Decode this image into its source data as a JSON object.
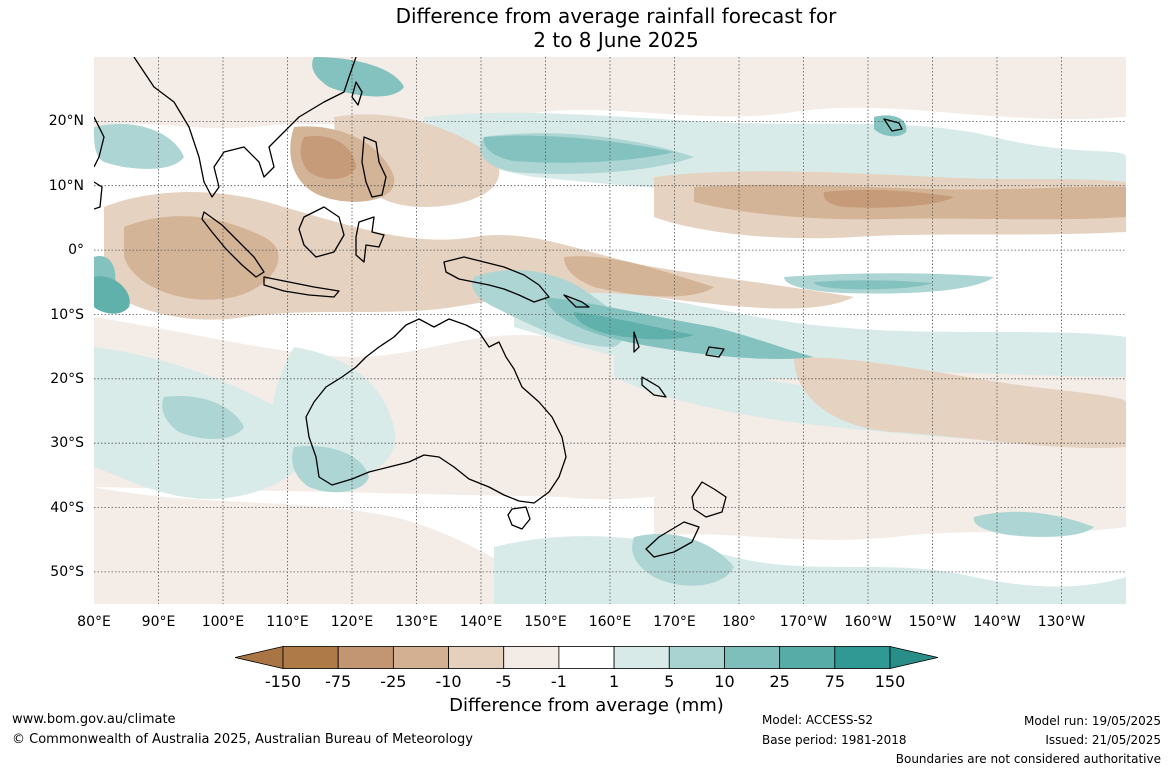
{
  "title": {
    "line1": "Difference from average rainfall forecast for",
    "line2": "2 to 8 June 2025"
  },
  "map": {
    "lat_labels": [
      "20°N",
      "10°N",
      "0°",
      "10°S",
      "20°S",
      "30°S",
      "40°S",
      "50°S"
    ],
    "lon_labels": [
      "80°E",
      "90°E",
      "100°E",
      "110°E",
      "120°E",
      "130°E",
      "140°E",
      "150°E",
      "160°E",
      "170°E",
      "180°",
      "170°W",
      "160°W",
      "150°W",
      "140°W",
      "130°W"
    ],
    "grid": "dotted",
    "extent": {
      "lon_min": 80,
      "lon_max": 240,
      "lat_min": -55,
      "lat_max": 30
    }
  },
  "legend": {
    "ticks": [
      "-150",
      "-75",
      "-25",
      "-10",
      "-5",
      "-1",
      "1",
      "5",
      "10",
      "25",
      "75",
      "150"
    ],
    "colors": [
      "#a97544",
      "#ae7a48",
      "#c29673",
      "#d2b091",
      "#e4d0bd",
      "#f3ece6",
      "#ffffff",
      "#d7eae8",
      "#a8d3d1",
      "#7ebfbc",
      "#58aca8",
      "#319994",
      "#2a8e88"
    ],
    "label": "Difference from average (mm)"
  },
  "footer": {
    "website": "www.bom.gov.au/climate",
    "copyright": "© Commonwealth of Australia 2025, Australian Bureau of Meteorology",
    "model": "Model: ACCESS-S2",
    "base_period": "Base period: 1981-2018",
    "model_run": "Model run: 19/05/2025",
    "issued": "Issued: 21/05/2025",
    "disclaimer": "Boundaries are not considered authoritative"
  }
}
